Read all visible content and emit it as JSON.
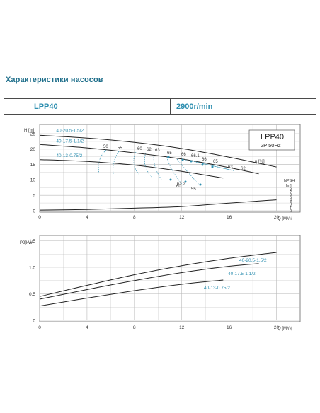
{
  "header": {
    "title": "Характеристики насосов",
    "model": "LPP40",
    "speed": "2900r/min"
  },
  "colors": {
    "accent": "#2e8fb0",
    "curve": "#222222",
    "grid": "#b8b8b8"
  },
  "chart_data": [
    {
      "type": "line",
      "legend_box": {
        "title": "LPP40",
        "subtitle": "2P  50Hz"
      },
      "xlabel": "Q [M³/ч]",
      "ylabel": "H [m]",
      "efficiency_label": "η [%]",
      "npsh_label": "NPSH",
      "npsh_unit": "[m]",
      "xlim": [
        0,
        22
      ],
      "ylim": [
        0,
        28
      ],
      "x_ticks": [
        "0",
        "4",
        "8",
        "12",
        "16",
        "20"
      ],
      "y_ticks": [
        "0",
        "5",
        "10",
        "15",
        "20",
        "25"
      ],
      "npsh_ticks": [
        "0",
        "1",
        "2",
        "3",
        "4",
        "5",
        "6",
        "7",
        "8"
      ],
      "grid": true,
      "series": [
        {
          "name": "40-20.5-1.5/2",
          "x": [
            0,
            4,
            8,
            12,
            16,
            20
          ],
          "y": [
            24.5,
            23.6,
            22.2,
            20.2,
            17.4,
            14.2
          ]
        },
        {
          "name": "40-17.5-1.1/2",
          "x": [
            0,
            4,
            8,
            12,
            16,
            18.5
          ],
          "y": [
            21.5,
            20.4,
            18.8,
            16.8,
            14.0,
            12.0
          ]
        },
        {
          "name": "40-13-0.75/2",
          "x": [
            0,
            4,
            8,
            12,
            15.5
          ],
          "y": [
            16.6,
            16.0,
            14.8,
            12.8,
            10.6
          ]
        }
      ],
      "npsh_curve": {
        "x": [
          0,
          4,
          8,
          12,
          16,
          20
        ],
        "y": [
          0.2,
          0.4,
          0.8,
          1.3,
          2.4,
          3.4
        ]
      },
      "efficiency_contours": [
        "50",
        "55",
        "60",
        "62",
        "63",
        "65",
        "66",
        "66.1",
        "66",
        "65",
        "63",
        "62",
        "61.2",
        "60",
        "55"
      ]
    },
    {
      "type": "line",
      "xlabel": "Q [M³/ч]",
      "ylabel": "P2[kW]",
      "xlim": [
        0,
        22
      ],
      "ylim": [
        0,
        1.6
      ],
      "x_ticks": [
        "0",
        "4",
        "8",
        "12",
        "16",
        "20"
      ],
      "y_ticks": [
        "0",
        "0.5",
        "1.0",
        "1.5"
      ],
      "grid": true,
      "series": [
        {
          "name": "40-20.5-1.5/2",
          "x": [
            0,
            4,
            8,
            12,
            16,
            20
          ],
          "y": [
            0.45,
            0.66,
            0.86,
            1.03,
            1.17,
            1.28
          ]
        },
        {
          "name": "40-17.5-1.1/2",
          "x": [
            0,
            4,
            8,
            12,
            16,
            18.5
          ],
          "y": [
            0.4,
            0.58,
            0.75,
            0.9,
            1.02,
            1.07
          ]
        },
        {
          "name": "40-13-0.75/2",
          "x": [
            0,
            4,
            8,
            12,
            15.5
          ],
          "y": [
            0.27,
            0.42,
            0.56,
            0.68,
            0.76
          ]
        }
      ]
    }
  ]
}
